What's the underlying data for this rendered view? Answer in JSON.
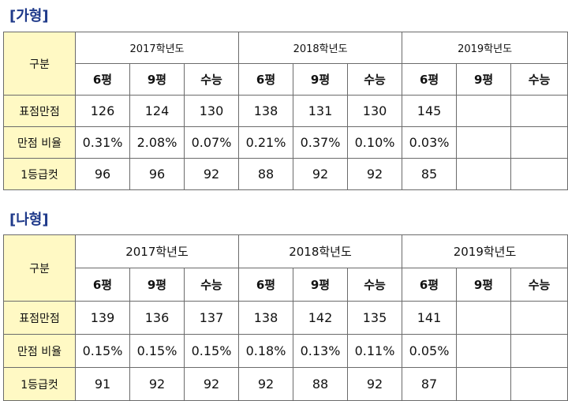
{
  "sections": [
    {
      "title": "[가형]",
      "row_header": "구분",
      "years": [
        "2017학년도",
        "2018학년도",
        "2019학년도"
      ],
      "exams": [
        "6평",
        "9평",
        "수능",
        "6평",
        "9평",
        "수능",
        "6평",
        "9평",
        "수능"
      ],
      "rows": [
        {
          "label": "표점만점",
          "values": [
            "126",
            "124",
            "130",
            "138",
            "131",
            "130",
            "145",
            "",
            ""
          ]
        },
        {
          "label": "만점 비율",
          "values": [
            "0.31%",
            "2.08%",
            "0.07%",
            "0.21%",
            "0.37%",
            "0.10%",
            "0.03%",
            "",
            ""
          ]
        },
        {
          "label": "1등급컷",
          "values": [
            "96",
            "96",
            "92",
            "88",
            "92",
            "92",
            "85",
            "",
            ""
          ]
        }
      ]
    },
    {
      "title": "[나형]",
      "row_header": "구분",
      "years": [
        "2017학년도",
        "2018학년도",
        "2019학년도"
      ],
      "exams": [
        "6평",
        "9평",
        "수능",
        "6평",
        "9평",
        "수능",
        "6평",
        "9평",
        "수능"
      ],
      "rows": [
        {
          "label": "표점만점",
          "values": [
            "139",
            "136",
            "137",
            "138",
            "142",
            "135",
            "141",
            "",
            ""
          ]
        },
        {
          "label": "만점 비율",
          "values": [
            "0.15%",
            "0.15%",
            "0.15%",
            "0.18%",
            "0.13%",
            "0.11%",
            "0.05%",
            "",
            ""
          ]
        },
        {
          "label": "1등급컷",
          "values": [
            "91",
            "92",
            "92",
            "92",
            "88",
            "92",
            "87",
            "",
            ""
          ]
        }
      ]
    }
  ]
}
